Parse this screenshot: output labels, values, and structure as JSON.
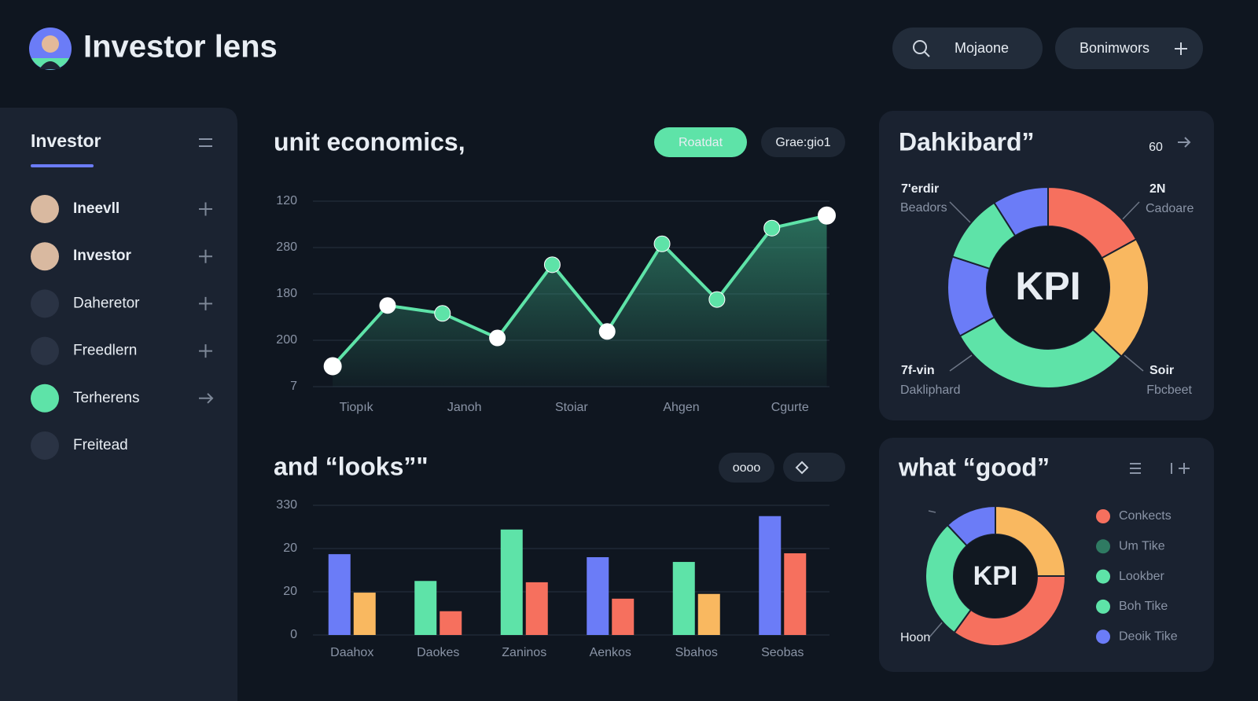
{
  "header": {
    "title": "Investor lens",
    "search": "Mojaone",
    "button": "Bonimwors"
  },
  "sidebar": {
    "title": "Investor",
    "items": [
      "Ineevll",
      "Investor",
      "Daheretor",
      "Freedlern",
      "Terherens",
      "Freitead"
    ]
  },
  "chart_data": [
    {
      "type": "line",
      "title": "unit economics,",
      "buttons": [
        "Roatdat",
        "Grae:gio1"
      ],
      "x": [
        0,
        1,
        2,
        3,
        4,
        5,
        6,
        7,
        8,
        9
      ],
      "values": [
        0.44,
        1.75,
        1.58,
        1.05,
        2.63,
        1.19,
        3.08,
        1.88,
        3.42,
        3.69
      ],
      "xlim": [
        -0.36,
        9.05
      ],
      "xticks": [
        {
          "value": 0.43,
          "label": "Tiopık"
        },
        {
          "value": 2.4,
          "label": "Janoh"
        },
        {
          "value": 4.35,
          "label": "Stoiar"
        },
        {
          "value": 6.35,
          "label": "Ahgen"
        },
        {
          "value": 8.33,
          "label": "Cgurte"
        }
      ],
      "ylim": [
        0,
        4
      ],
      "yticks": [
        {
          "value": 0,
          "label": "7"
        },
        {
          "value": 1,
          "label": "200"
        },
        {
          "value": 2,
          "label": "180"
        },
        {
          "value": 3,
          "label": "280"
        },
        {
          "value": 4,
          "label": "120"
        }
      ],
      "color": "#5ee3a8",
      "grid": true
    },
    {
      "type": "bar",
      "title": "and “looks”\"",
      "buttons": [
        "oooo"
      ],
      "categories": [
        "Daahox",
        "Daokes",
        "Zaninos",
        "Aenkos",
        "Sbahos",
        "Seobas"
      ],
      "series": [
        {
          "colors": [
            "#6b7cf7",
            "#5ee3a8",
            "#5ee3a8",
            "#6b7cf7",
            "#5ee3a8",
            "#6b7cf7"
          ],
          "values": [
            1.87,
            1.25,
            2.44,
            1.8,
            1.69,
            2.75
          ]
        },
        {
          "colors": [
            "#f9b860",
            "#f6705e",
            "#f6705e",
            "#f6705e",
            "#f9b860",
            "#f6705e"
          ],
          "values": [
            0.98,
            0.55,
            1.22,
            0.84,
            0.95,
            1.89
          ]
        }
      ],
      "ylim": [
        0,
        3
      ],
      "yticks": [
        {
          "value": 0,
          "label": "0"
        },
        {
          "value": 1,
          "label": "20"
        },
        {
          "value": 2,
          "label": "20"
        },
        {
          "value": 3,
          "label": "330"
        }
      ],
      "grid": true
    },
    {
      "type": "pie",
      "title": "Dahkibard”",
      "buttons": [
        "60"
      ],
      "center_label": "KPI",
      "values": [
        17,
        20,
        30,
        13,
        11,
        9
      ],
      "colors": [
        "#f6705e",
        "#f9b860",
        "#5ee3a8",
        "#6b7cf7",
        "#5ee3a8",
        "#6b7cf7"
      ],
      "annotations": [
        {
          "text": "7'erdir",
          "sub": "Beadors",
          "color": "#5ee3a8"
        },
        {
          "text": "2N",
          "sub": "Cadoare",
          "color": "#f7865e"
        },
        {
          "text": "7f-vin",
          "sub": "Dakliphard",
          "color": "#5ee3a8"
        },
        {
          "text": "Soir",
          "sub": "Fbcbeet",
          "color": "#f9b860"
        }
      ]
    },
    {
      "type": "pie",
      "title": "what “good”",
      "center_label": "KPI",
      "values": [
        25,
        35,
        28,
        12
      ],
      "colors": [
        "#f9b860",
        "#f6705e",
        "#5ee3a8",
        "#6b7cf7"
      ],
      "annotations": [
        {
          "text": "Hoon",
          "color": "#8a94a6"
        }
      ],
      "legend": [
        {
          "name": "Conkects",
          "color": "#f6705e"
        },
        {
          "name": "Um Tike",
          "color": "#2f7a62"
        },
        {
          "name": "Lookber",
          "color": "#5ee3a8"
        },
        {
          "name": "Boh Tike",
          "color": "#5ee3a8"
        },
        {
          "name": "Deoik Tike",
          "color": "#6b7cf7"
        }
      ]
    }
  ]
}
